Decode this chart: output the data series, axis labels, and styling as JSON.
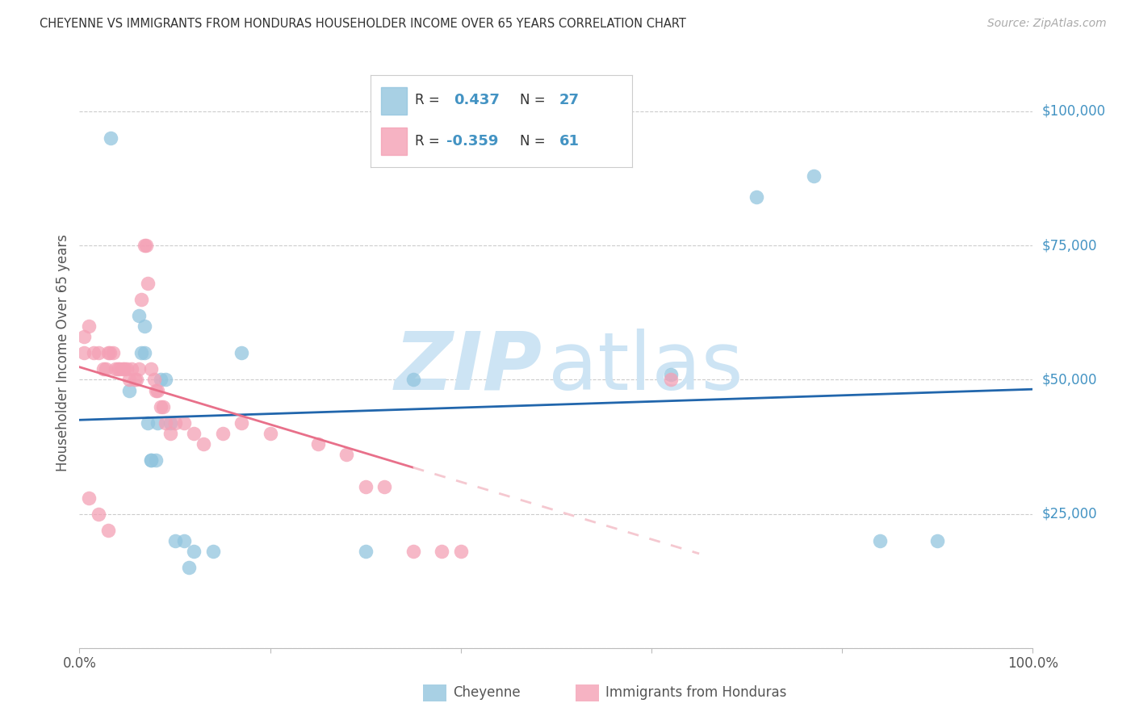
{
  "title": "CHEYENNE VS IMMIGRANTS FROM HONDURAS HOUSEHOLDER INCOME OVER 65 YEARS CORRELATION CHART",
  "source": "Source: ZipAtlas.com",
  "ylabel": "Householder Income Over 65 years",
  "xlim": [
    0,
    1.0
  ],
  "ylim": [
    0,
    110000
  ],
  "yticks": [
    0,
    25000,
    50000,
    75000,
    100000
  ],
  "ytick_labels": [
    "",
    "$25,000",
    "$50,000",
    "$75,000",
    "$100,000"
  ],
  "cheyenne_color": "#92c5de",
  "honduras_color": "#f4a0b5",
  "trendline_cheyenne_color": "#2166ac",
  "trendline_honduras_solid_color": "#e8708a",
  "trendline_honduras_dashed_color": "#f5c8d0",
  "grid_color": "#cccccc",
  "right_tick_color": "#4393c3",
  "legend_text_color_blue": "#4393c3",
  "legend_text_color_dark": "#333333",
  "watermark_color": "#cde4f4",
  "cheyenne_x": [
    0.033,
    0.052,
    0.062,
    0.065,
    0.068,
    0.072,
    0.075,
    0.08,
    0.085,
    0.09,
    0.095,
    0.1,
    0.11,
    0.115,
    0.12,
    0.14,
    0.17,
    0.3,
    0.35,
    0.62,
    0.71,
    0.77,
    0.84,
    0.9,
    0.068,
    0.075,
    0.082
  ],
  "cheyenne_y": [
    95000,
    48000,
    62000,
    55000,
    55000,
    42000,
    35000,
    35000,
    50000,
    50000,
    42000,
    20000,
    20000,
    15000,
    18000,
    18000,
    55000,
    18000,
    50000,
    51000,
    84000,
    88000,
    20000,
    20000,
    60000,
    35000,
    42000
  ],
  "honduras_x": [
    0.005,
    0.01,
    0.015,
    0.02,
    0.025,
    0.028,
    0.03,
    0.032,
    0.035,
    0.038,
    0.04,
    0.042,
    0.045,
    0.047,
    0.05,
    0.052,
    0.055,
    0.058,
    0.06,
    0.062,
    0.065,
    0.068,
    0.07,
    0.072,
    0.075,
    0.078,
    0.08,
    0.082,
    0.085,
    0.088,
    0.09,
    0.095,
    0.1,
    0.11,
    0.12,
    0.13,
    0.15,
    0.17,
    0.2,
    0.25,
    0.28,
    0.3,
    0.32,
    0.35,
    0.38,
    0.4,
    0.62,
    0.005,
    0.01,
    0.02,
    0.03
  ],
  "honduras_y": [
    58000,
    60000,
    55000,
    55000,
    52000,
    52000,
    55000,
    55000,
    55000,
    52000,
    52000,
    52000,
    52000,
    52000,
    52000,
    50000,
    52000,
    50000,
    50000,
    52000,
    65000,
    75000,
    75000,
    68000,
    52000,
    50000,
    48000,
    48000,
    45000,
    45000,
    42000,
    40000,
    42000,
    42000,
    40000,
    38000,
    40000,
    42000,
    40000,
    38000,
    36000,
    30000,
    30000,
    18000,
    18000,
    18000,
    50000,
    55000,
    28000,
    25000,
    22000
  ]
}
